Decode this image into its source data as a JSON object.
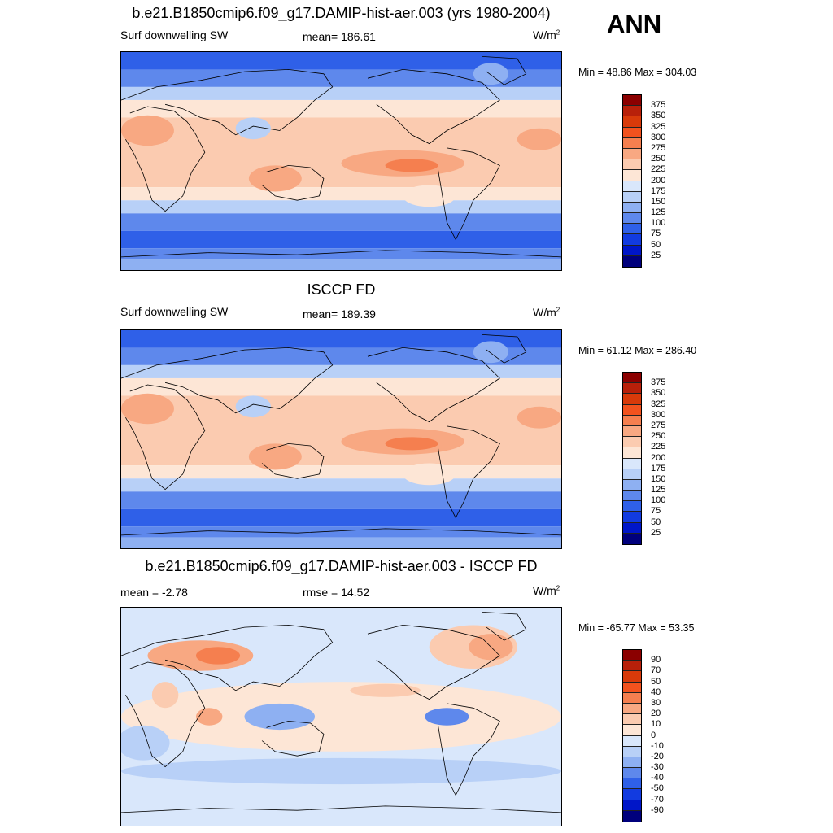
{
  "season": "ANN",
  "panels": [
    {
      "title": "b.e21.B1850cmip6.f09_g17.DAMIP-hist-aer.003 (yrs 1980-2004)",
      "left_label": "Surf downwelling SW",
      "center_label": "mean= 186.61",
      "units": "W/m",
      "units_sup": "2",
      "minmax": "Min =  48.86 Max = 304.03"
    },
    {
      "title": "ISCCP FD",
      "left_label": "Surf downwelling SW",
      "center_label": "mean= 189.39",
      "units": "W/m",
      "units_sup": "2",
      "minmax": "Min =  61.12 Max = 286.40"
    },
    {
      "title": "b.e21.B1850cmip6.f09_g17.DAMIP-hist-aer.003 - ISCCP FD",
      "left_label": "mean =  -2.78",
      "center_label": "rmse =  14.52",
      "units": "W/m",
      "units_sup": "2",
      "minmax": "Min = -65.77 Max =  53.35"
    }
  ],
  "chart_data": [
    {
      "type": "heatmap",
      "map": "global contour map, annual mean surface downwelling shortwave (model)",
      "colorbar": {
        "levels": [
          "375",
          "350",
          "325",
          "300",
          "275",
          "250",
          "225",
          "200",
          "175",
          "150",
          "125",
          "100",
          "75",
          "50",
          "25"
        ],
        "colors": [
          "#8b0000",
          "#b8200a",
          "#d83a0a",
          "#f2521e",
          "#f57f4f",
          "#f8a882",
          "#fbcbb0",
          "#fde6d6",
          "#d9e7fb",
          "#b8d0f7",
          "#8eb0f2",
          "#5e88ec",
          "#2f60e8",
          "#123be0",
          "#0016c8",
          "#00007c"
        ]
      },
      "min": 48.86,
      "max": 304.03,
      "mean": 186.61
    },
    {
      "type": "heatmap",
      "map": "global contour map, annual mean surface downwelling shortwave (ISCCP FD)",
      "colorbar": {
        "levels": [
          "375",
          "350",
          "325",
          "300",
          "275",
          "250",
          "225",
          "200",
          "175",
          "150",
          "125",
          "100",
          "75",
          "50",
          "25"
        ],
        "colors": [
          "#8b0000",
          "#b8200a",
          "#d83a0a",
          "#f2521e",
          "#f57f4f",
          "#f8a882",
          "#fbcbb0",
          "#fde6d6",
          "#d9e7fb",
          "#b8d0f7",
          "#8eb0f2",
          "#5e88ec",
          "#2f60e8",
          "#123be0",
          "#0016c8",
          "#00007c"
        ]
      },
      "min": 61.12,
      "max": 286.4,
      "mean": 189.39
    },
    {
      "type": "heatmap",
      "map": "global contour map, model minus ISCCP FD difference",
      "colorbar": {
        "levels": [
          "90",
          "70",
          "50",
          "40",
          "30",
          "20",
          "10",
          "0",
          "-10",
          "-20",
          "-30",
          "-40",
          "-50",
          "-70",
          "-90"
        ],
        "colors": [
          "#8b0000",
          "#b8200a",
          "#d83a0a",
          "#f2521e",
          "#f57f4f",
          "#f8a882",
          "#fbcbb0",
          "#fde6d6",
          "#d9e7fb",
          "#b8d0f7",
          "#8eb0f2",
          "#5e88ec",
          "#2f60e8",
          "#123be0",
          "#0016c8",
          "#00007c"
        ]
      },
      "min": -65.77,
      "max": 53.35,
      "mean": -2.78,
      "rmse": 14.52
    }
  ]
}
